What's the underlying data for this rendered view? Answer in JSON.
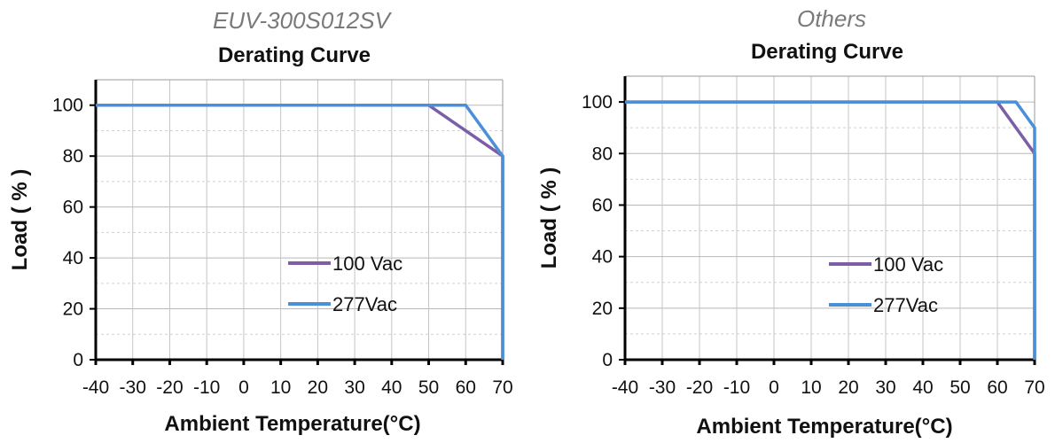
{
  "chart_data": [
    {
      "type": "line",
      "model": "EUV-300S012SV",
      "title": "Derating Curve",
      "xlabel": "Ambient Temperature(°C)",
      "ylabel": "Load ( % )",
      "xlim": [
        -40,
        70
      ],
      "ylim": [
        0,
        110
      ],
      "xticks": [
        -40,
        -30,
        -20,
        -10,
        0,
        10,
        20,
        30,
        40,
        50,
        60,
        70
      ],
      "xtick_labels": [
        "-40",
        "-30",
        "-20",
        "-10",
        "0",
        "10",
        "20",
        "30",
        "40",
        "50",
        "60",
        "70"
      ],
      "yticks": [
        0,
        20,
        40,
        60,
        80,
        100
      ],
      "ytick_labels": [
        "0",
        "20",
        "40",
        "60",
        "80",
        "100"
      ],
      "grid": true,
      "legend_position": "lower-right",
      "series": [
        {
          "name": "100 Vac",
          "color": "#7b5ea7",
          "x": [
            -40,
            50,
            70,
            70
          ],
          "y": [
            100,
            100,
            80,
            0
          ]
        },
        {
          "name": "277Vac",
          "color": "#4a90d9",
          "x": [
            -40,
            60,
            70,
            70
          ],
          "y": [
            100,
            100,
            80,
            0
          ]
        }
      ]
    },
    {
      "type": "line",
      "model": "Others",
      "title": "Derating Curve",
      "xlabel": "Ambient Temperature(°C)",
      "ylabel": "Load ( % )",
      "xlim": [
        -40,
        70
      ],
      "ylim": [
        0,
        110
      ],
      "xticks": [
        -40,
        -30,
        -20,
        -10,
        0,
        10,
        20,
        30,
        40,
        50,
        60,
        70
      ],
      "xtick_labels": [
        "-40",
        "-30",
        "-20",
        "-10",
        "0",
        "10",
        "20",
        "30",
        "40",
        "50",
        "60",
        "70"
      ],
      "yticks": [
        0,
        20,
        40,
        60,
        80,
        100
      ],
      "ytick_labels": [
        "0",
        "20",
        "40",
        "60",
        "80",
        "100"
      ],
      "grid": true,
      "legend_position": "lower-right",
      "series": [
        {
          "name": "100 Vac",
          "color": "#7b5ea7",
          "x": [
            -40,
            60,
            70,
            70
          ],
          "y": [
            100,
            100,
            80,
            0
          ]
        },
        {
          "name": "277Vac",
          "color": "#4a90d9",
          "x": [
            -40,
            65,
            70,
            70
          ],
          "y": [
            100,
            100,
            90,
            0
          ]
        }
      ]
    }
  ]
}
